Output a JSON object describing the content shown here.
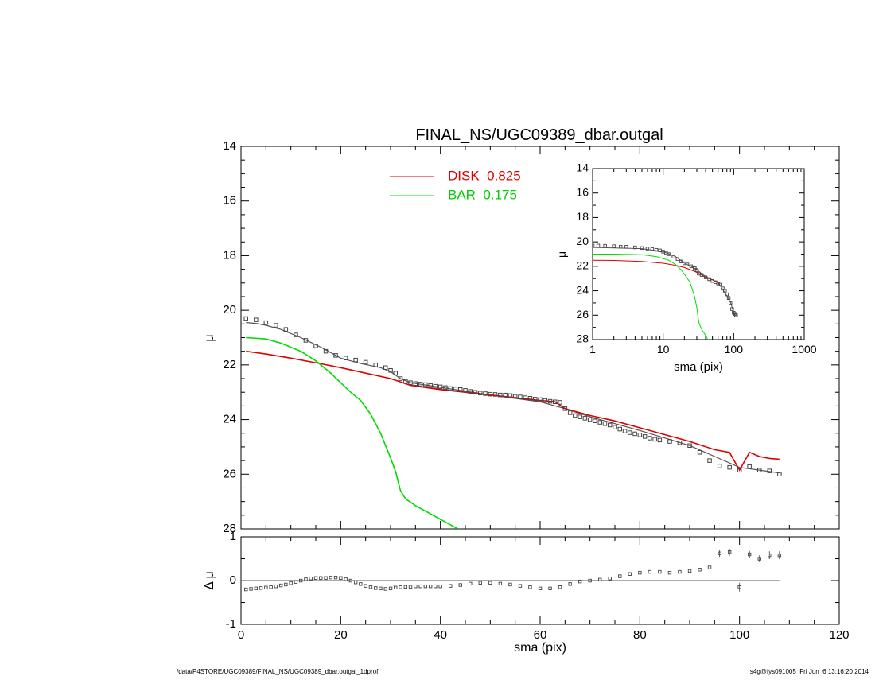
{
  "chart_data": [
    {
      "type": "line",
      "title": "FINAL_NS/UGC09389_dbar.outgal",
      "xlabel": "",
      "ylabel": "μ",
      "xlim": [
        0,
        120
      ],
      "ylim": [
        28,
        14
      ],
      "y_inverted": true,
      "yticks": [
        14,
        16,
        18,
        20,
        22,
        24,
        26,
        28
      ],
      "xticks": [
        0,
        20,
        40,
        60,
        80,
        100,
        120
      ],
      "legend": {
        "placement": "top-center",
        "entries": [
          {
            "label": "DISK  0.825",
            "color": "#e00000"
          },
          {
            "label": "BAR  0.175",
            "color": "#00dd00"
          }
        ]
      },
      "series": [
        {
          "role": "observed",
          "style": "open-squares",
          "color": "#000000",
          "x": [
            1,
            3,
            5,
            7,
            9,
            11,
            13,
            15,
            17,
            19,
            21,
            23,
            25,
            27,
            29,
            30,
            31,
            32,
            33,
            34,
            35,
            36,
            37,
            38,
            39,
            40,
            41,
            42,
            43,
            44,
            45,
            46,
            47,
            48,
            49,
            50,
            51,
            52,
            53,
            54,
            55,
            56,
            57,
            58,
            59,
            60,
            61,
            62,
            63,
            64,
            65,
            66,
            67,
            68,
            69,
            70,
            71,
            72,
            73,
            74,
            75,
            76,
            77,
            78,
            79,
            80,
            81,
            82,
            83,
            84,
            86,
            88,
            90,
            92,
            94,
            96,
            98,
            100,
            102,
            104,
            106,
            108
          ],
          "y": [
            20.3,
            20.35,
            20.45,
            20.55,
            20.7,
            20.9,
            21.1,
            21.3,
            21.5,
            21.65,
            21.75,
            21.82,
            21.9,
            22.0,
            22.1,
            22.2,
            22.3,
            22.5,
            22.6,
            22.65,
            22.68,
            22.7,
            22.72,
            22.75,
            22.78,
            22.8,
            22.83,
            22.86,
            22.88,
            22.9,
            22.93,
            22.97,
            23.0,
            23.03,
            23.05,
            23.07,
            23.08,
            23.1,
            23.1,
            23.12,
            23.15,
            23.17,
            23.2,
            23.22,
            23.25,
            23.27,
            23.3,
            23.33,
            23.35,
            23.37,
            23.6,
            23.75,
            23.85,
            23.9,
            23.95,
            24.0,
            24.05,
            24.1,
            24.15,
            24.2,
            24.28,
            24.35,
            24.42,
            24.48,
            24.52,
            24.56,
            24.62,
            24.68,
            24.72,
            24.75,
            24.8,
            24.85,
            24.95,
            25.2,
            25.5,
            25.7,
            25.75,
            25.85,
            25.72,
            25.85,
            25.88,
            26.0
          ]
        },
        {
          "role": "total-model",
          "style": "line",
          "color": "#555555",
          "x": [
            1,
            3,
            5,
            8,
            12,
            16,
            20,
            24,
            28,
            30,
            32,
            34,
            40,
            50,
            60,
            65,
            70,
            80,
            90,
            100,
            108
          ],
          "y": [
            20.45,
            20.48,
            20.55,
            20.7,
            21.0,
            21.35,
            21.75,
            21.95,
            22.1,
            22.25,
            22.5,
            22.65,
            22.82,
            23.1,
            23.35,
            23.6,
            23.9,
            24.4,
            24.95,
            25.75,
            25.95
          ]
        },
        {
          "name": "DISK",
          "style": "line",
          "color": "#e00000",
          "x": [
            1,
            5,
            10,
            15,
            20,
            25,
            30,
            32,
            34,
            36,
            40,
            45,
            50,
            55,
            60,
            63,
            65,
            70,
            75,
            80,
            85,
            90,
            95,
            98,
            100,
            102,
            104,
            106,
            108
          ],
          "y": [
            21.5,
            21.6,
            21.75,
            21.92,
            22.1,
            22.3,
            22.5,
            22.62,
            22.75,
            22.8,
            22.9,
            23.0,
            23.1,
            23.2,
            23.3,
            23.35,
            23.6,
            23.85,
            24.05,
            24.3,
            24.55,
            24.8,
            25.1,
            25.2,
            25.85,
            25.2,
            25.35,
            25.42,
            25.45
          ]
        },
        {
          "name": "BAR",
          "style": "line",
          "color": "#00dd00",
          "x": [
            1,
            5,
            8,
            12,
            15,
            18,
            20,
            22,
            24,
            26,
            28,
            30,
            31,
            32,
            33,
            35,
            38,
            40,
            42,
            43.5
          ],
          "y": [
            21.0,
            21.05,
            21.2,
            21.5,
            21.85,
            22.3,
            22.65,
            23.0,
            23.3,
            23.8,
            24.5,
            25.4,
            25.9,
            26.6,
            26.9,
            27.15,
            27.45,
            27.65,
            27.85,
            28.0
          ]
        }
      ]
    },
    {
      "type": "line",
      "subtitle": "inset",
      "xlabel": "sma (pix)",
      "ylabel": "μ",
      "x_scale": "log",
      "xlim": [
        1,
        1000
      ],
      "ylim": [
        28,
        14
      ],
      "y_inverted": true,
      "yticks": [
        14,
        16,
        18,
        20,
        22,
        24,
        26,
        28
      ],
      "xticks": [
        1,
        10,
        100,
        1000
      ],
      "series": [
        {
          "role": "observed",
          "style": "open-squares",
          "color": "#000000",
          "x": [
            1,
            1.2,
            1.5,
            2,
            2.5,
            3,
            4,
            5,
            6,
            7,
            8,
            9,
            10,
            11,
            12,
            14,
            16,
            18,
            20,
            22,
            25,
            28,
            30,
            32,
            35,
            40,
            45,
            50,
            55,
            60,
            65,
            70,
            75,
            80,
            85,
            90,
            95,
            100,
            105,
            108
          ],
          "y": [
            20.3,
            20.3,
            20.32,
            20.35,
            20.4,
            20.4,
            20.45,
            20.5,
            20.55,
            20.6,
            20.65,
            20.7,
            20.8,
            20.9,
            21.0,
            21.2,
            21.4,
            21.6,
            21.75,
            21.85,
            22.0,
            22.15,
            22.3,
            22.6,
            22.7,
            22.9,
            23.05,
            23.2,
            23.3,
            23.4,
            23.5,
            23.8,
            24.0,
            24.3,
            24.6,
            25.0,
            25.5,
            25.8,
            25.9,
            26.0
          ]
        },
        {
          "name": "DISK",
          "style": "line",
          "color": "#e00000",
          "x": [
            1,
            2,
            5,
            10,
            15,
            20,
            25,
            30,
            40,
            50,
            60,
            65
          ],
          "y": [
            21.5,
            21.52,
            21.6,
            21.75,
            21.92,
            22.1,
            22.3,
            22.5,
            22.9,
            23.1,
            23.3,
            23.6
          ]
        },
        {
          "name": "BAR",
          "style": "line",
          "color": "#00dd00",
          "x": [
            1,
            2,
            5,
            8,
            12,
            15,
            18,
            20,
            24,
            28,
            30,
            32,
            35,
            40,
            43
          ],
          "y": [
            21.0,
            21.0,
            21.05,
            21.2,
            21.5,
            21.85,
            22.3,
            22.65,
            23.3,
            24.5,
            25.4,
            26.6,
            27.15,
            27.65,
            28.0
          ]
        },
        {
          "role": "total-model",
          "style": "line",
          "color": "#555555",
          "x": [
            1,
            5,
            10,
            15,
            20,
            25,
            30,
            35,
            40,
            50,
            60,
            70,
            80,
            90,
            100,
            108
          ],
          "y": [
            20.45,
            20.55,
            20.8,
            21.2,
            21.75,
            22.0,
            22.25,
            22.6,
            22.82,
            23.1,
            23.35,
            23.9,
            24.4,
            24.95,
            25.75,
            25.95
          ]
        }
      ]
    },
    {
      "type": "scatter",
      "subtitle": "residuals",
      "xlabel": "sma (pix)",
      "ylabel": "Δ μ",
      "xlim": [
        0,
        120
      ],
      "ylim": [
        -1,
        1
      ],
      "yticks": [
        -1,
        0,
        1
      ],
      "xticks": [
        0,
        20,
        40,
        60,
        80,
        100,
        120
      ],
      "xtick_labels": [
        "0",
        "20",
        "40",
        "60",
        "80",
        "100",
        "120"
      ],
      "zero_line": true,
      "series": [
        {
          "role": "residual",
          "style": "open-squares",
          "color": "#000000",
          "x": [
            1,
            2,
            3,
            4,
            5,
            6,
            7,
            8,
            9,
            10,
            11,
            12,
            13,
            14,
            15,
            16,
            17,
            18,
            19,
            20,
            21,
            22,
            23,
            24,
            25,
            26,
            27,
            28,
            29,
            30,
            31,
            32,
            33,
            34,
            35,
            36,
            37,
            38,
            39,
            40,
            42,
            44,
            46,
            48,
            50,
            52,
            54,
            56,
            58,
            60,
            62,
            64,
            66,
            68,
            70,
            72,
            74,
            76,
            78,
            80,
            82,
            84,
            86,
            88,
            90,
            92,
            94,
            96,
            98,
            100,
            102,
            104,
            106,
            108
          ],
          "y": [
            -0.2,
            -0.19,
            -0.18,
            -0.17,
            -0.16,
            -0.15,
            -0.13,
            -0.11,
            -0.09,
            -0.06,
            -0.03,
            0.0,
            0.03,
            0.05,
            0.06,
            0.06,
            0.06,
            0.07,
            0.07,
            0.06,
            0.03,
            0.0,
            -0.04,
            -0.08,
            -0.12,
            -0.15,
            -0.17,
            -0.18,
            -0.19,
            -0.18,
            -0.16,
            -0.15,
            -0.14,
            -0.14,
            -0.13,
            -0.13,
            -0.13,
            -0.13,
            -0.13,
            -0.13,
            -0.12,
            -0.1,
            -0.07,
            -0.05,
            -0.05,
            -0.07,
            -0.09,
            -0.12,
            -0.15,
            -0.18,
            -0.18,
            -0.15,
            -0.08,
            -0.02,
            0.0,
            0.02,
            0.05,
            0.1,
            0.15,
            0.18,
            0.2,
            0.2,
            0.18,
            0.2,
            0.22,
            0.25,
            0.3,
            0.62,
            0.65,
            -0.15,
            0.6,
            0.5,
            0.58,
            0.58
          ],
          "yerr": [
            0,
            0,
            0,
            0,
            0,
            0,
            0,
            0,
            0,
            0,
            0,
            0,
            0,
            0,
            0,
            0,
            0,
            0,
            0,
            0,
            0,
            0,
            0,
            0,
            0,
            0,
            0,
            0,
            0,
            0,
            0,
            0,
            0,
            0,
            0,
            0,
            0,
            0,
            0,
            0,
            0,
            0,
            0,
            0,
            0,
            0,
            0,
            0,
            0,
            0,
            0,
            0,
            0,
            0,
            0,
            0,
            0,
            0,
            0,
            0,
            0,
            0,
            0,
            0,
            0,
            0,
            0,
            0.08,
            0.08,
            0.1,
            0.08,
            0.08,
            0.09,
            0.09
          ]
        }
      ]
    }
  ],
  "footer": {
    "left": "/data/P4STORE/UGC09389/FINAL_NS/UGC09389_dbar.outgal_1dprof",
    "right": "s4g@fys091005  Fri Jun  6 13:16:20 2014"
  }
}
